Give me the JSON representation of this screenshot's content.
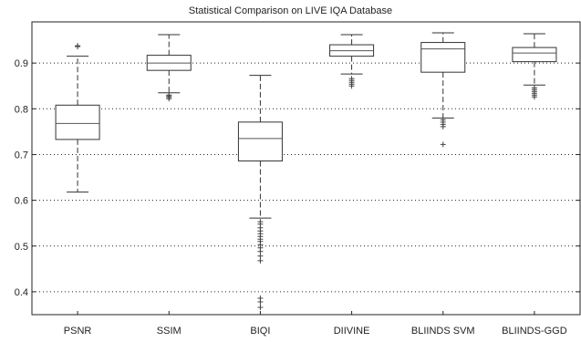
{
  "chart_data": {
    "type": "boxplot",
    "title": "Statistical Comparison on LIVE IQA Database",
    "xlabel": "",
    "ylabel": "",
    "ylim": [
      0.35,
      0.99
    ],
    "yticks": [
      "0.4",
      "0.5",
      "0.6",
      "0.7",
      "0.8",
      "0.9"
    ],
    "grid": "horizontal dotted",
    "categories": [
      "PSNR",
      "SSIM",
      "BIQI",
      "DIIVINE",
      "BLIINDS SVM",
      "BLIINDS-GGD"
    ],
    "boxes": [
      {
        "label": "PSNR",
        "whisker_low": 0.618,
        "q1": 0.733,
        "median": 0.768,
        "q3": 0.808,
        "whisker_high": 0.915,
        "outliers": [
          0.936,
          0.938
        ]
      },
      {
        "label": "SSIM",
        "whisker_low": 0.835,
        "q1": 0.884,
        "median": 0.9,
        "q3": 0.917,
        "whisker_high": 0.962,
        "outliers": [
          0.822,
          0.825,
          0.828,
          0.83
        ]
      },
      {
        "label": "BIQI",
        "whisker_low": 0.561,
        "q1": 0.686,
        "median": 0.735,
        "q3": 0.771,
        "whisker_high": 0.873,
        "outliers": [
          0.553,
          0.548,
          0.54,
          0.533,
          0.527,
          0.521,
          0.515,
          0.51,
          0.503,
          0.496,
          0.488,
          0.478,
          0.468,
          0.386,
          0.378,
          0.366
        ]
      },
      {
        "label": "DIIVINE",
        "whisker_low": 0.876,
        "q1": 0.915,
        "median": 0.927,
        "q3": 0.94,
        "whisker_high": 0.962,
        "outliers": [
          0.866,
          0.862,
          0.858,
          0.854,
          0.85
        ]
      },
      {
        "label": "BLIINDS SVM",
        "whisker_low": 0.78,
        "q1": 0.88,
        "median": 0.931,
        "q3": 0.945,
        "whisker_high": 0.966,
        "outliers": [
          0.776,
          0.771,
          0.766,
          0.761,
          0.722
        ]
      },
      {
        "label": "BLIINDS-GGD",
        "whisker_low": 0.852,
        "q1": 0.903,
        "median": 0.922,
        "q3": 0.934,
        "whisker_high": 0.964,
        "outliers": [
          0.846,
          0.842,
          0.838,
          0.834,
          0.83,
          0.826
        ]
      }
    ]
  }
}
